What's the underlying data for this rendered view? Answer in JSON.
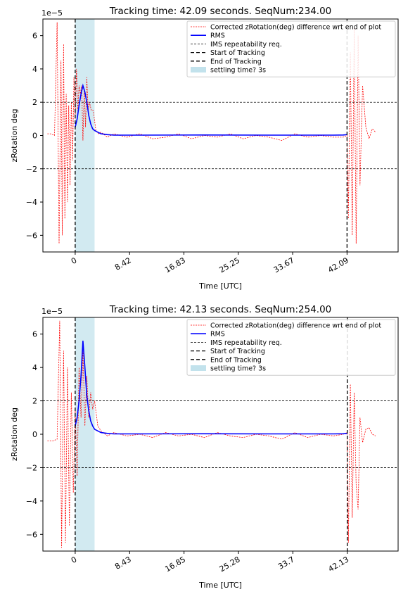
{
  "chart_data": [
    {
      "type": "line",
      "title": "Tracking time: 42.09 seconds. SeqNum:234.00",
      "xlabel": "Time [UTC]",
      "ylabel": "zRotation deg",
      "y_scale_label": "1e−5",
      "xlim": [
        -5,
        50
      ],
      "ylim": [
        -7,
        7
      ],
      "x_tick_values": [
        0,
        8.42,
        16.83,
        25.25,
        33.67,
        42.09
      ],
      "x_tick_labels": [
        "0",
        "8.42",
        "16.83",
        "25.25",
        "33.67",
        "42.09"
      ],
      "y_ticks": [
        -6,
        -4,
        -2,
        0,
        2,
        4,
        6
      ],
      "y_tick_labels": [
        "−6",
        "−4",
        "−2",
        "0",
        "2",
        "4",
        "6"
      ],
      "requirement_lines": [
        2,
        -2
      ],
      "tracking_start": 0,
      "tracking_end": 42.09,
      "settling_span": [
        0,
        3
      ],
      "legend_placement": "top-right",
      "legend": [
        {
          "label": "Corrected zRotation(deg) difference wrt end of plot",
          "style": "red-dotted"
        },
        {
          "label": "RMS",
          "style": "blue-solid"
        },
        {
          "label": "IMS repeatability req.",
          "style": "black-thin-dashed"
        },
        {
          "label": "Start of Tracking",
          "style": "black-dashed"
        },
        {
          "label": "End of Tracking",
          "style": "black-dashed"
        },
        {
          "label": "settling time? 3s",
          "style": "lightblue-patch"
        }
      ],
      "series": [
        {
          "name": "Corrected zRotation(deg) difference wrt end of plot",
          "x": [
            -4.3,
            -3.8,
            -3.2,
            -2.8,
            -2.5,
            -2.2,
            -2.0,
            -1.8,
            -1.6,
            -1.4,
            -1.2,
            -1.0,
            -0.8,
            -0.6,
            -0.4,
            -0.2,
            0.0,
            0.2,
            0.4,
            0.6,
            0.8,
            1.0,
            1.2,
            1.4,
            1.6,
            1.8,
            2.0,
            2.2,
            2.5,
            2.8,
            3.2,
            3.6,
            4.0,
            5.0,
            6.0,
            8.0,
            10.0,
            12.0,
            14.0,
            16.0,
            18.0,
            20.0,
            22.0,
            24.0,
            26.0,
            28.0,
            30.0,
            32.0,
            34.0,
            36.0,
            38.0,
            40.0,
            41.5,
            42.1,
            42.3,
            42.6,
            42.9,
            43.2,
            43.5,
            43.8,
            44.1,
            44.5,
            45.0,
            45.5,
            46.0,
            46.5
          ],
          "y": [
            0.1,
            0.1,
            0.0,
            6.8,
            -6.5,
            4.5,
            -6.0,
            5.5,
            -5.0,
            2.5,
            -4.0,
            1.8,
            -3.0,
            2.0,
            -1.5,
            3.5,
            1.0,
            4.0,
            1.5,
            3.0,
            2.5,
            3.0,
            -0.3,
            2.8,
            0.5,
            3.5,
            1.5,
            2.0,
            1.5,
            1.5,
            0.3,
            0.1,
            0.2,
            -0.1,
            0.1,
            -0.1,
            0.1,
            -0.2,
            -0.1,
            0.1,
            -0.2,
            0.0,
            -0.1,
            0.1,
            -0.2,
            0.0,
            -0.1,
            -0.3,
            0.1,
            -0.1,
            0.0,
            -0.1,
            -0.1,
            0.0,
            -5.0,
            5.0,
            -6.0,
            6.5,
            -6.5,
            6.0,
            -3.0,
            3.0,
            0.5,
            -0.2,
            0.4,
            0.2
          ]
        },
        {
          "name": "RMS",
          "x": [
            0.0,
            0.3,
            0.6,
            0.9,
            1.2,
            1.5,
            1.8,
            2.1,
            2.4,
            2.7,
            3.0,
            3.5,
            4.0,
            5.0,
            6.0,
            10.0,
            20.0,
            30.0,
            40.0,
            41.5,
            42.09
          ],
          "y": [
            0.5,
            1.0,
            1.8,
            2.5,
            3.0,
            2.6,
            2.0,
            1.2,
            0.7,
            0.4,
            0.3,
            0.2,
            0.1,
            0.05,
            0.02,
            0.02,
            0.03,
            0.02,
            0.02,
            0.03,
            0.05
          ]
        }
      ]
    },
    {
      "type": "line",
      "title": "Tracking time: 42.13 seconds. SeqNum:254.00",
      "xlabel": "Time [UTC]",
      "ylabel": "zRotation deg",
      "y_scale_label": "1e−5",
      "xlim": [
        -5,
        50
      ],
      "ylim": [
        -7,
        7
      ],
      "x_tick_values": [
        0,
        8.43,
        16.85,
        25.28,
        33.7,
        42.13
      ],
      "x_tick_labels": [
        "0",
        "8.43",
        "16.85",
        "25.28",
        "33.7",
        "42.13"
      ],
      "y_ticks": [
        -6,
        -4,
        -2,
        0,
        2,
        4,
        6
      ],
      "y_tick_labels": [
        "−6",
        "−4",
        "−2",
        "0",
        "2",
        "4",
        "6"
      ],
      "requirement_lines": [
        2,
        -2
      ],
      "tracking_start": 0,
      "tracking_end": 42.13,
      "settling_span": [
        0,
        3
      ],
      "legend_placement": "top-right",
      "legend": [
        {
          "label": "Corrected zRotation(deg) difference wrt end of plot",
          "style": "red-dotted"
        },
        {
          "label": "RMS",
          "style": "blue-solid"
        },
        {
          "label": "IMS repeatability req.",
          "style": "black-thin-dashed"
        },
        {
          "label": "Start of Tracking",
          "style": "black-dashed"
        },
        {
          "label": "End of Tracking",
          "style": "black-dashed"
        },
        {
          "label": "settling time? 3s",
          "style": "lightblue-patch"
        }
      ],
      "series": [
        {
          "name": "Corrected zRotation(deg) difference wrt end of plot",
          "x": [
            -4.3,
            -3.5,
            -2.8,
            -2.4,
            -2.1,
            -1.8,
            -1.5,
            -1.2,
            -0.9,
            -0.6,
            -0.3,
            0.0,
            0.3,
            0.6,
            0.9,
            1.2,
            1.5,
            1.8,
            2.1,
            2.4,
            2.7,
            3.0,
            3.5,
            4.0,
            5.0,
            6.0,
            8.0,
            10.0,
            12.0,
            14.0,
            16.0,
            18.0,
            20.0,
            22.0,
            24.0,
            26.0,
            28.0,
            30.0,
            32.0,
            34.0,
            36.0,
            38.0,
            40.0,
            41.5,
            42.1,
            42.3,
            42.6,
            42.9,
            43.2,
            43.5,
            43.8,
            44.1,
            44.5,
            45.0,
            45.5,
            46.0,
            46.5
          ],
          "y": [
            -0.4,
            -0.4,
            -0.3,
            6.8,
            -6.8,
            5.0,
            -6.5,
            4.0,
            -5.5,
            2.5,
            -3.5,
            1.5,
            -2.5,
            4.0,
            1.0,
            5.0,
            0.5,
            3.5,
            1.0,
            2.5,
            1.5,
            2.0,
            0.5,
            0.2,
            -0.1,
            0.1,
            -0.1,
            0.0,
            -0.2,
            0.1,
            -0.1,
            0.0,
            -0.2,
            0.1,
            -0.1,
            -0.2,
            0.0,
            -0.1,
            -0.3,
            0.1,
            -0.2,
            0.0,
            -0.1,
            0.0,
            0.1,
            -6.5,
            3.0,
            -5.0,
            2.5,
            -3.0,
            -4.5,
            1.0,
            -0.5,
            0.3,
            0.4,
            0.0,
            -0.1
          ]
        },
        {
          "name": "RMS",
          "x": [
            0.0,
            0.3,
            0.6,
            0.9,
            1.2,
            1.5,
            1.8,
            2.1,
            2.4,
            2.7,
            3.0,
            3.5,
            4.0,
            5.0,
            6.0,
            10.0,
            20.0,
            30.0,
            40.0,
            41.5,
            42.13
          ],
          "y": [
            0.5,
            1.0,
            2.0,
            3.5,
            5.6,
            4.0,
            2.3,
            1.4,
            0.8,
            0.5,
            0.3,
            0.2,
            0.1,
            0.05,
            0.02,
            0.02,
            0.03,
            0.02,
            0.02,
            0.03,
            0.05
          ]
        }
      ]
    }
  ]
}
